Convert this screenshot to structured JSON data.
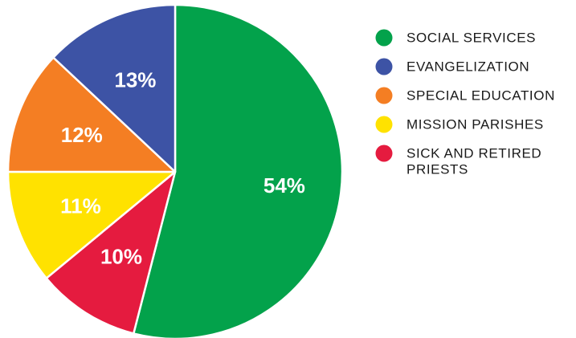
{
  "chart_data": {
    "type": "pie",
    "slices": [
      {
        "name": "SOCIAL SERVICES",
        "value": 54,
        "label": "54%",
        "color": "#03A24B"
      },
      {
        "name": "SICK AND RETIRED PRIESTS",
        "value": 10,
        "label": "10%",
        "color": "#E51B3F"
      },
      {
        "name": "MISSION PARISHES",
        "value": 11,
        "label": "11%",
        "color": "#FFE200"
      },
      {
        "name": "SPECIAL EDUCATION",
        "value": 12,
        "label": "12%",
        "color": "#F47E23"
      },
      {
        "name": "EVANGELIZATION",
        "value": 13,
        "label": "13%",
        "color": "#3D53A5"
      }
    ],
    "legend": [
      {
        "lines": [
          "SOCIAL SERVICES"
        ],
        "color": "#03A24B"
      },
      {
        "lines": [
          "EVANGELIZATION"
        ],
        "color": "#3D53A5"
      },
      {
        "lines": [
          "SPECIAL EDUCATION"
        ],
        "color": "#F47E23"
      },
      {
        "lines": [
          "MISSION PARISHES"
        ],
        "color": "#FFE200"
      },
      {
        "lines": [
          "SICK AND RETIRED",
          "PRIESTS"
        ],
        "color": "#E51B3F"
      }
    ],
    "legend_position": "right"
  }
}
